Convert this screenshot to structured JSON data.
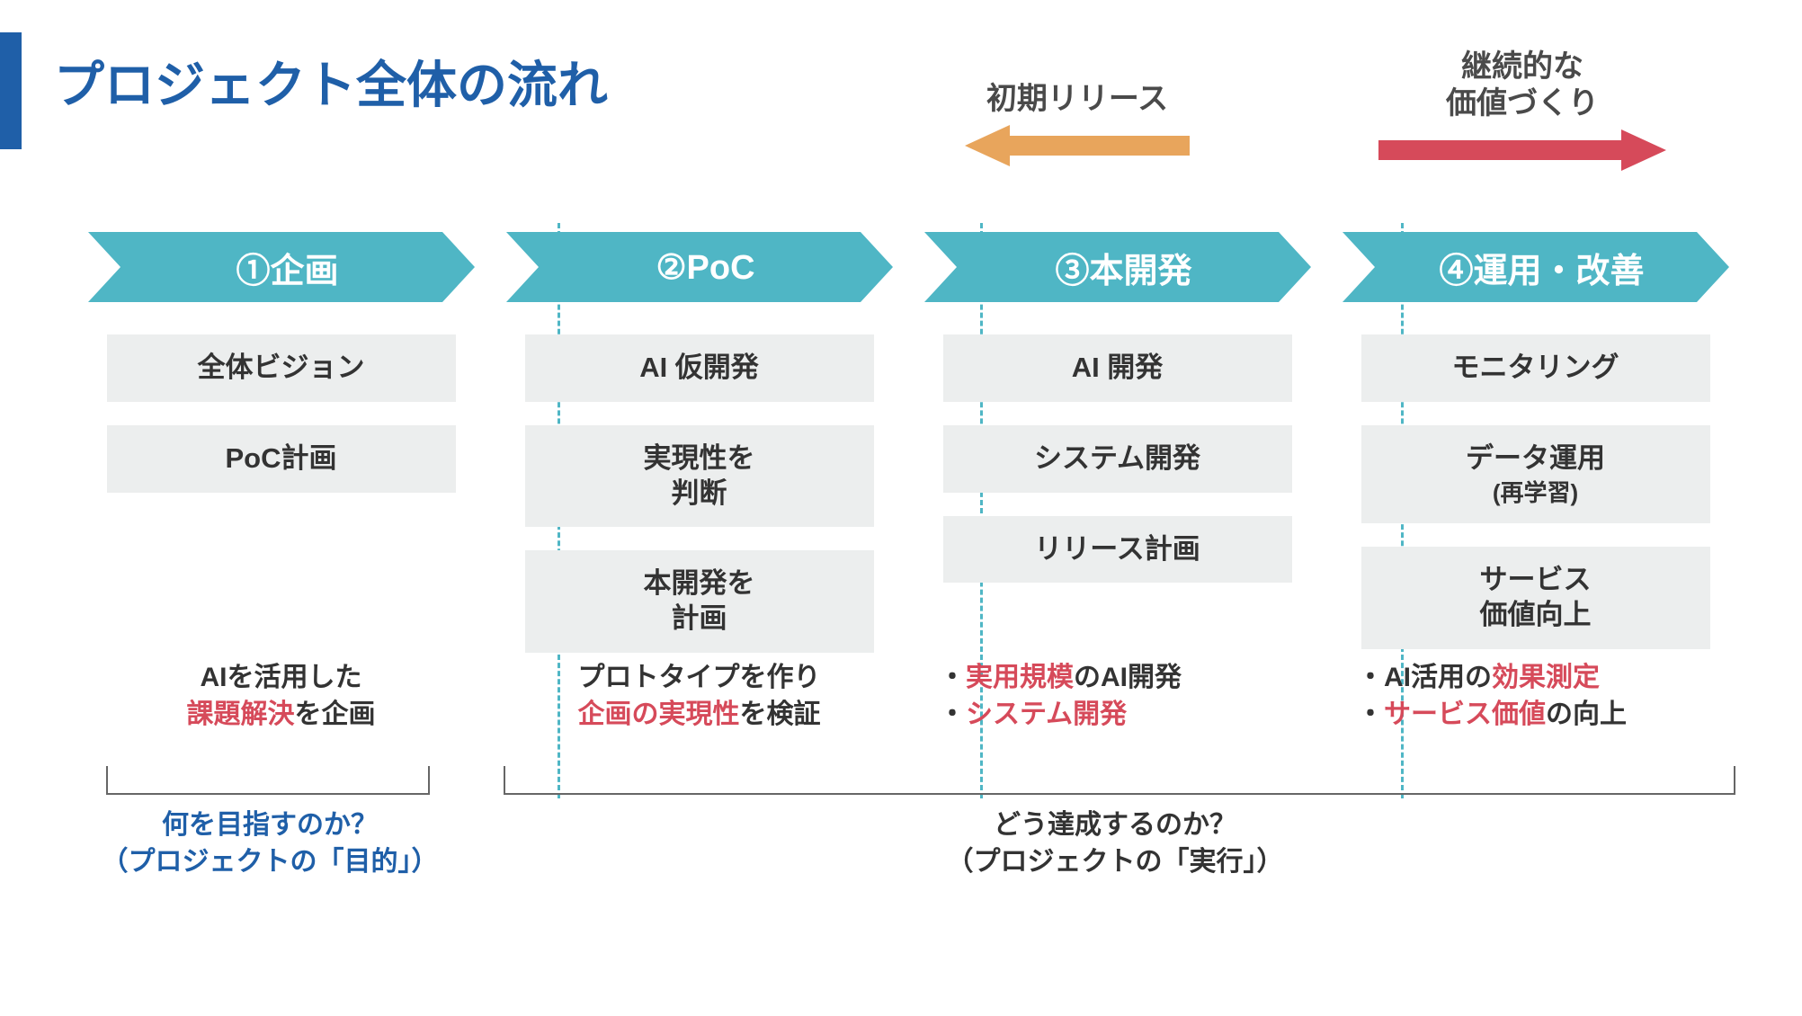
{
  "title": "プロジェクト全体の流れ",
  "colors": {
    "accent": "#1f5fa8",
    "arrow_fill": "#4fb6c5",
    "task_bg": "#eceeee",
    "highlight": "#d64a5a",
    "float_arrow_1": "#e8a55c",
    "float_arrow_2": "#d64a5a",
    "divider": "#4fb6c5",
    "text": "#333333"
  },
  "float_arrows": {
    "initial_release": {
      "label": "初期リリース",
      "direction": "left",
      "color": "#e8a55c"
    },
    "continuous_value": {
      "label_line1": "継続的な",
      "label_line2": "価値づくり",
      "direction": "right",
      "color": "#d64a5a"
    }
  },
  "phases": [
    {
      "id": "plan",
      "header": "①企画",
      "tasks": [
        {
          "text": "全体ビジョン"
        },
        {
          "text": "PoC計画"
        }
      ],
      "summary_html": "AIを活用した<br><span class=\"hl\">課題解決</span>を企画"
    },
    {
      "id": "poc",
      "header": "②PoC",
      "tasks": [
        {
          "text": "AI 仮開発"
        },
        {
          "text": "実現性を<br>判断"
        },
        {
          "text": "本開発を<br>計画"
        }
      ],
      "summary_html": "プロトタイプを作り<br><span class=\"hl\">企画の実現性</span>を検証"
    },
    {
      "id": "dev",
      "header": "③本開発",
      "tasks": [
        {
          "text": "AI 開発"
        },
        {
          "text": "システム開発"
        },
        {
          "text": "リリース計画"
        }
      ],
      "summary_html": "・<span class=\"hl\">実用規模</span>のAI開発<br>・<span class=\"hl\">システム開発</span>",
      "summary_align": "left"
    },
    {
      "id": "ops",
      "header": "④運用・改善",
      "tasks": [
        {
          "text": "モニタリング"
        },
        {
          "text": "データ運用",
          "sub": "(再学習)"
        },
        {
          "text": "サービス<br>価値向上"
        }
      ],
      "summary_html": "・AI活用の<span class=\"hl\">効果測定</span><br>・<span class=\"hl\">サービス価値</span>の向上",
      "summary_align": "left"
    }
  ],
  "brackets": {
    "goal": {
      "question": "何を目指すのか？",
      "sub": "（プロジェクトの「目的」）"
    },
    "execution": {
      "question": "どう達成するのか？",
      "sub": "（プロジェクトの「実行」）"
    }
  }
}
